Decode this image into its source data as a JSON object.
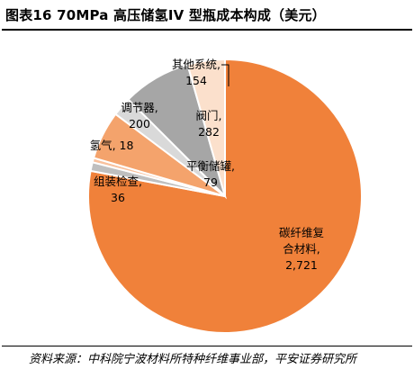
{
  "title": "图表16   70MPa 高压储氢IV 型瓶成本构成（美元）",
  "source": "资料来源：中科院宁波材料所特种纤维事业部，平安证券研究所",
  "chart_data": {
    "type": "pie",
    "title": "70MPa 高压储氢IV 型瓶成本构成（美元）",
    "slices": [
      {
        "name": "碳纤维复合材料",
        "label_lines": [
          "碳纤维复",
          "合材料,",
          "2,721"
        ],
        "value": 2721,
        "color": "#F0813A"
      },
      {
        "name": "组装检查",
        "label_lines": [
          "组装检查,",
          "36"
        ],
        "value": 36,
        "color": "#BFBFBF"
      },
      {
        "name": "氢气",
        "label_lines": [
          "氢气, 18"
        ],
        "value": 18,
        "color": "#F8C09C"
      },
      {
        "name": "调节器",
        "label_lines": [
          "调节器,",
          "200"
        ],
        "value": 200,
        "color": "#F4A36C"
      },
      {
        "name": "平衡储罐",
        "label_lines": [
          "平衡储罐,",
          "79"
        ],
        "value": 79,
        "color": "#D9D9D9"
      },
      {
        "name": "阀门",
        "label_lines": [
          "阀门,",
          "282"
        ],
        "value": 282,
        "color": "#A6A6A6"
      },
      {
        "name": "其他系统",
        "label_lines": [
          "其他系统,",
          "154"
        ],
        "value": 154,
        "color": "#FBE0CC"
      }
    ],
    "start_angle_deg": 0,
    "direction": "clockwise"
  }
}
